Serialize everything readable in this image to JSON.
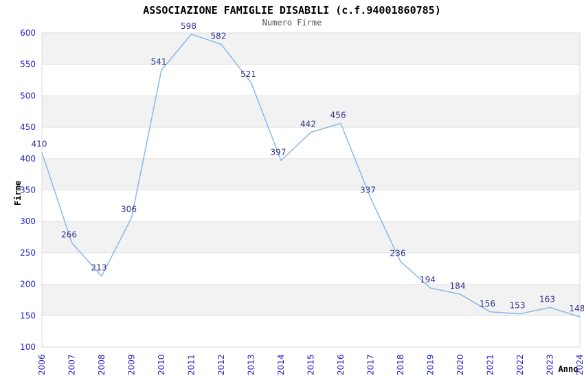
{
  "chart_data": {
    "type": "line",
    "title": "ASSOCIAZIONE FAMIGLIE DISABILI (c.f.94001860785)",
    "subtitle": "Numero Firme",
    "xlabel": "Anno",
    "ylabel": "Firme",
    "categories": [
      "2006",
      "2007",
      "2008",
      "2009",
      "2010",
      "2011",
      "2012",
      "2013",
      "2014",
      "2015",
      "2016",
      "2017",
      "2018",
      "2019",
      "2020",
      "2021",
      "2022",
      "2023",
      "2024"
    ],
    "values": [
      410,
      266,
      213,
      306,
      541,
      598,
      582,
      521,
      397,
      442,
      456,
      337,
      236,
      194,
      184,
      156,
      153,
      163,
      148
    ],
    "ylim": [
      100,
      600
    ],
    "ytick_step": 50,
    "grid": "horizontal-only",
    "legend": "none",
    "data_labels_visible": true,
    "x_tick_rotation": -90,
    "colors": {
      "line": "#88b8e8",
      "data_label": "#333388",
      "tick_label": "#2323cc",
      "band_gray": "#f2f2f2",
      "band_white": "#ffffff",
      "grid_line": "#e3e3e3",
      "plot_border": "#d9d9d9",
      "title": "#000000",
      "subtitle": "#555555",
      "background": "#ffffff"
    }
  }
}
